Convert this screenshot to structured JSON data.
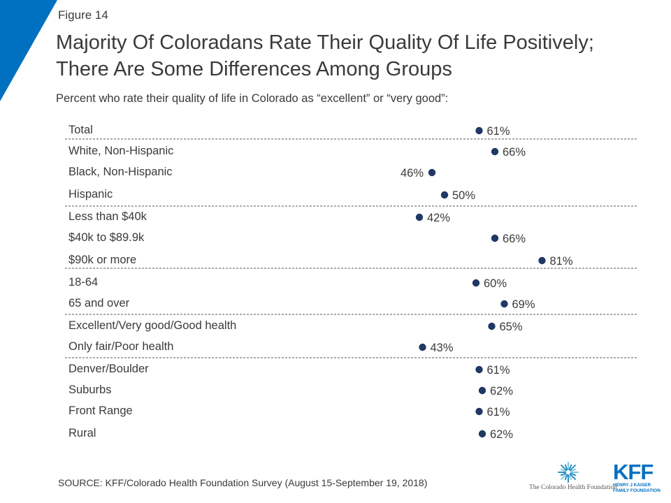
{
  "figure_label": "Figure 14",
  "title_line1": "Majority Of Coloradans Rate Their Quality Of Life Positively;",
  "title_line2": "There Are Some Differences Among Groups",
  "subtitle": "Percent who rate their quality of life in Colorado as “excellent” or “very good”:",
  "source": "SOURCE: KFF/Colorado Health Foundation Survey (August 15-September 19, 2018)",
  "logos": {
    "chf": "The Colorado Health Foundation",
    "kff_mark": "KFF",
    "kff_sub1": "HENRY J KAISER",
    "kff_sub2": "FAMILY FOUNDATION"
  },
  "colors": {
    "dot": "#1f3864",
    "accent": "#0070c0",
    "divider": "#555555",
    "text": "#3a3a3a"
  },
  "chart_data": {
    "type": "scatter",
    "value_suffix": "%",
    "categories": [
      "Total",
      "White, Non-Hispanic",
      "Black, Non-Hispanic",
      "Hispanic",
      "Less than $40k",
      "$40k to $89.9k",
      "$90k or more",
      "18-64",
      "65 and over",
      "Excellent/Very good/Good health",
      "Only fair/Poor health",
      "Denver/Boulder",
      "Suburbs",
      "Front Range",
      "Rural"
    ],
    "values": [
      61,
      66,
      46,
      50,
      42,
      66,
      81,
      60,
      69,
      65,
      43,
      61,
      62,
      61,
      62
    ],
    "label_side": [
      "right",
      "right",
      "left",
      "right",
      "right",
      "right",
      "right",
      "right",
      "right",
      "right",
      "right",
      "right",
      "right",
      "right",
      "right"
    ],
    "groups_end_after_index": [
      0,
      3,
      6,
      8,
      10
    ]
  }
}
